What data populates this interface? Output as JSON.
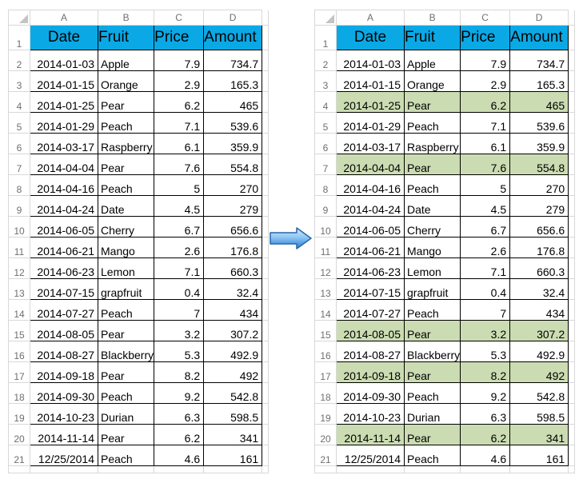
{
  "columns": [
    "A",
    "B",
    "C",
    "D"
  ],
  "header_row": {
    "number": "1",
    "cells": [
      "Date",
      "Fruit",
      "Price",
      "Amount"
    ]
  },
  "rows": [
    {
      "number": "2",
      "date": "2014-01-03",
      "fruit": "Apple",
      "price": "7.9",
      "amount": "734.7"
    },
    {
      "number": "3",
      "date": "2014-01-15",
      "fruit": "Orange",
      "price": "2.9",
      "amount": "165.3"
    },
    {
      "number": "4",
      "date": "2014-01-25",
      "fruit": "Pear",
      "price": "6.2",
      "amount": "465"
    },
    {
      "number": "5",
      "date": "2014-01-29",
      "fruit": "Peach",
      "price": "7.1",
      "amount": "539.6"
    },
    {
      "number": "6",
      "date": "2014-03-17",
      "fruit": "Raspberry",
      "price": "6.1",
      "amount": "359.9"
    },
    {
      "number": "7",
      "date": "2014-04-04",
      "fruit": "Pear",
      "price": "7.6",
      "amount": "554.8"
    },
    {
      "number": "8",
      "date": "2014-04-16",
      "fruit": "Peach",
      "price": "5",
      "amount": "270"
    },
    {
      "number": "9",
      "date": "2014-04-24",
      "fruit": "Date",
      "price": "4.5",
      "amount": "279"
    },
    {
      "number": "10",
      "date": "2014-06-05",
      "fruit": "Cherry",
      "price": "6.7",
      "amount": "656.6"
    },
    {
      "number": "11",
      "date": "2014-06-21",
      "fruit": "Mango",
      "price": "2.6",
      "amount": "176.8"
    },
    {
      "number": "12",
      "date": "2014-06-23",
      "fruit": "Lemon",
      "price": "7.1",
      "amount": "660.3"
    },
    {
      "number": "13",
      "date": "2014-07-15",
      "fruit": "grapfruit",
      "price": "0.4",
      "amount": "32.4"
    },
    {
      "number": "14",
      "date": "2014-07-27",
      "fruit": "Peach",
      "price": "7",
      "amount": "434"
    },
    {
      "number": "15",
      "date": "2014-08-05",
      "fruit": "Pear",
      "price": "3.2",
      "amount": "307.2"
    },
    {
      "number": "16",
      "date": "2014-08-27",
      "fruit": "Blackberry",
      "price": "5.3",
      "amount": "492.9"
    },
    {
      "number": "17",
      "date": "2014-09-18",
      "fruit": "Pear",
      "price": "8.2",
      "amount": "492"
    },
    {
      "number": "18",
      "date": "2014-09-30",
      "fruit": "Peach",
      "price": "9.2",
      "amount": "542.8"
    },
    {
      "number": "19",
      "date": "2014-10-23",
      "fruit": "Durian",
      "price": "6.3",
      "amount": "598.5"
    },
    {
      "number": "20",
      "date": "2014-11-14",
      "fruit": "Pear",
      "price": "6.2",
      "amount": "341"
    },
    {
      "number": "21",
      "date": "12/25/2014",
      "fruit": "Peach",
      "price": "4.6",
      "amount": "161"
    }
  ],
  "highlight": {
    "fruit": "Pear",
    "row_numbers": [
      4,
      7,
      15,
      17,
      20
    ],
    "color": "#CBDCB2"
  },
  "colors": {
    "header_fill": "#0AA9E6",
    "highlight_green": "#CBDCB2",
    "cell_border": "#000000",
    "grid_line": "#D8D8D8",
    "header_label": "#6F6F6F",
    "corner_triangle": "#C4C4C4",
    "arrow_stroke": "#2366AC",
    "arrow_gradient": [
      "#D6ECFB",
      "#90C6F2",
      "#4B97DF",
      "#3380CC"
    ]
  }
}
